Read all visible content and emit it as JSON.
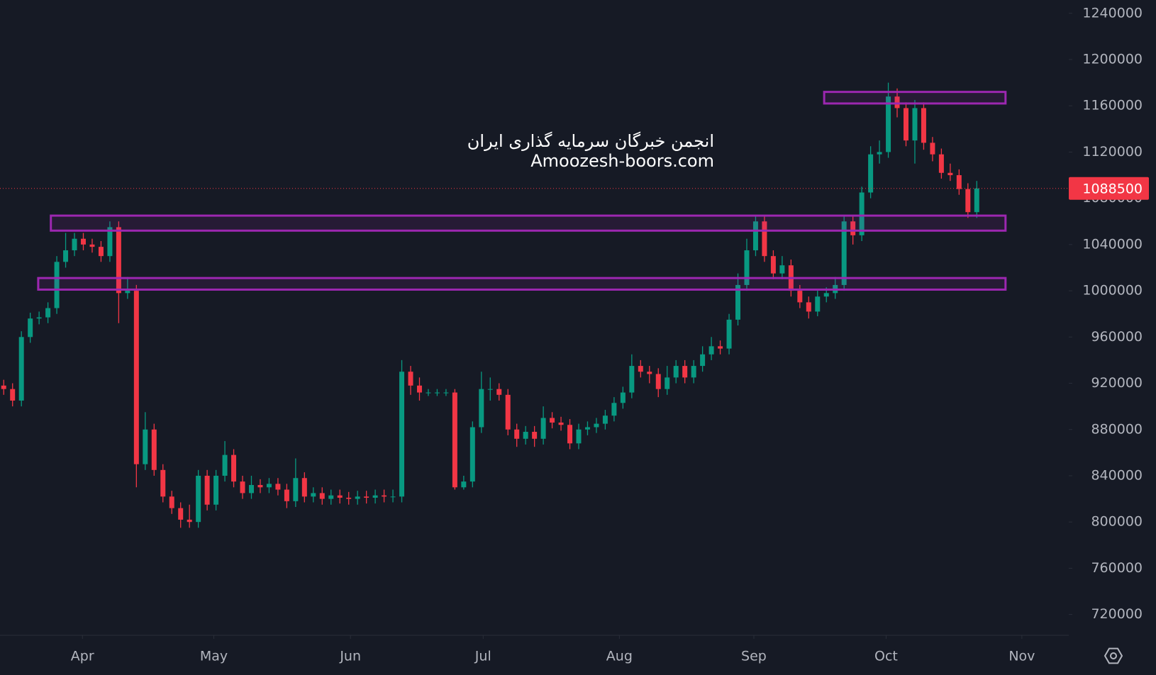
{
  "chart_data": {
    "type": "candlestick",
    "watermark": [
      "انجمن خبرگان سرمایه گذاری ایران",
      "Amoozesh-boors.com"
    ],
    "up_color": "#089981",
    "down_color": "#f23645",
    "zone_color": "#9c27b0",
    "ylim": [
      702000,
      1251500
    ],
    "yticks": [
      720000,
      760000,
      800000,
      840000,
      880000,
      920000,
      960000,
      1000000,
      1040000,
      1080000,
      1120000,
      1160000,
      1200000,
      1240000
    ],
    "xlim": [
      -0.42,
      120.4
    ],
    "xticks": [
      {
        "value": 8.9,
        "label": "Apr"
      },
      {
        "value": 23.75,
        "label": "May"
      },
      {
        "value": 39.2,
        "label": "Jun"
      },
      {
        "value": 54.2,
        "label": "Jul"
      },
      {
        "value": 69.6,
        "label": "Aug"
      },
      {
        "value": 84.8,
        "label": "Sep"
      },
      {
        "value": 99.75,
        "label": "Oct"
      },
      {
        "value": 115.1,
        "label": "Nov"
      }
    ],
    "grid": false,
    "zones": [
      {
        "top": 1172000,
        "bottom": 1162000,
        "start": 92.75,
        "end": 113.25
      },
      {
        "top": 1065000,
        "bottom": 1052000,
        "start": 5.33,
        "end": 113.25
      },
      {
        "top": 1011000,
        "bottom": 1001000,
        "start": 3.9,
        "end": 113.25
      }
    ],
    "series": {
      "open": [
        918000,
        915000,
        905000,
        960000,
        976000,
        977000,
        985000,
        1025000,
        1035000,
        1045000,
        1040000,
        1038000,
        1030000,
        1055000,
        998000,
        1000000,
        850000,
        880000,
        845000,
        822000,
        812000,
        802000,
        800000,
        840000,
        815000,
        840000,
        858000,
        835000,
        825000,
        832000,
        830000,
        833000,
        828000,
        818000,
        838000,
        822000,
        825000,
        820000,
        823000,
        821000,
        820000,
        822000,
        821000,
        823000,
        822000,
        822000,
        930000,
        918000,
        912000,
        912000,
        912000,
        912000,
        830000,
        835000,
        882000,
        915000,
        915000,
        910000,
        880000,
        872000,
        878000,
        872000,
        890000,
        886000,
        884000,
        868000,
        880000,
        882000,
        885000,
        892000,
        903000,
        912000,
        935000,
        930000,
        928000,
        915000,
        925000,
        935000,
        925000,
        935000,
        945000,
        952000,
        950000,
        975000,
        1005000,
        1035000,
        1060000,
        1030000,
        1015000,
        1022000,
        1000000,
        990000,
        982000,
        995000,
        998000,
        1005000,
        1060000,
        1048000,
        1085000,
        1118000,
        1120000,
        1168000,
        1158000,
        1130000,
        1158000,
        1128000,
        1118000,
        1102000,
        1100000,
        1088000,
        1068000
      ],
      "high": [
        923000,
        920000,
        965000,
        981000,
        982000,
        990000,
        1030000,
        1050000,
        1050000,
        1050000,
        1045000,
        1043000,
        1060000,
        1060000,
        1012000,
        1005000,
        895000,
        885000,
        850000,
        827000,
        817000,
        815000,
        845000,
        845000,
        845000,
        870000,
        863000,
        840000,
        840000,
        837000,
        838000,
        838000,
        833000,
        855000,
        843000,
        830000,
        830000,
        828000,
        828000,
        826000,
        827000,
        827000,
        828000,
        828000,
        828000,
        940000,
        935000,
        925000,
        915000,
        915000,
        915000,
        915000,
        840000,
        887000,
        930000,
        925000,
        920000,
        915000,
        885000,
        883000,
        883000,
        900000,
        895000,
        891000,
        889000,
        885000,
        887000,
        890000,
        897000,
        908000,
        917000,
        945000,
        940000,
        935000,
        933000,
        935000,
        940000,
        940000,
        940000,
        952000,
        960000,
        957000,
        980000,
        1015000,
        1045000,
        1065000,
        1065000,
        1035000,
        1030000,
        1027000,
        1005000,
        995000,
        1000000,
        1003000,
        1012000,
        1065000,
        1065000,
        1090000,
        1125000,
        1130000,
        1180000,
        1175000,
        1163000,
        1165000,
        1163000,
        1133000,
        1123000,
        1110000,
        1105000,
        1093000,
        1095000
      ],
      "low": [
        910000,
        900000,
        900000,
        955000,
        971000,
        972000,
        980000,
        1020000,
        1030000,
        1035000,
        1033000,
        1025000,
        1025000,
        972000,
        993000,
        830000,
        845000,
        840000,
        817000,
        807000,
        795000,
        795000,
        795000,
        810000,
        810000,
        835000,
        830000,
        820000,
        820000,
        825000,
        825000,
        823000,
        812000,
        813000,
        817000,
        817000,
        815000,
        815000,
        816000,
        815000,
        815000,
        816000,
        816000,
        817000,
        817000,
        817000,
        910000,
        905000,
        909000,
        909000,
        909000,
        828000,
        828000,
        830000,
        877000,
        905000,
        905000,
        875000,
        865000,
        867000,
        865000,
        867000,
        881000,
        879000,
        863000,
        863000,
        875000,
        877000,
        880000,
        887000,
        898000,
        907000,
        925000,
        920000,
        908000,
        910000,
        920000,
        920000,
        920000,
        930000,
        940000,
        945000,
        945000,
        970000,
        1000000,
        1030000,
        1025000,
        1010000,
        1010000,
        995000,
        985000,
        976000,
        978000,
        990000,
        993000,
        1000000,
        1040000,
        1043000,
        1080000,
        1110000,
        1115000,
        1150000,
        1125000,
        1110000,
        1122000,
        1112000,
        1097000,
        1095000,
        1083000,
        1063000,
        1063000
      ],
      "close": [
        915000,
        905000,
        960000,
        976000,
        977000,
        985000,
        1025000,
        1035000,
        1045000,
        1040000,
        1038000,
        1030000,
        1055000,
        998000,
        1000000,
        850000,
        880000,
        845000,
        822000,
        812000,
        802000,
        800000,
        840000,
        815000,
        840000,
        858000,
        835000,
        825000,
        832000,
        830000,
        833000,
        828000,
        818000,
        838000,
        822000,
        825000,
        820000,
        823000,
        821000,
        820000,
        822000,
        821000,
        823000,
        822000,
        822000,
        930000,
        918000,
        912000,
        912000,
        912000,
        912000,
        830000,
        835000,
        882000,
        915000,
        915000,
        910000,
        880000,
        872000,
        878000,
        872000,
        890000,
        886000,
        884000,
        868000,
        880000,
        882000,
        885000,
        892000,
        903000,
        912000,
        935000,
        930000,
        928000,
        915000,
        925000,
        935000,
        925000,
        935000,
        945000,
        952000,
        950000,
        975000,
        1005000,
        1035000,
        1060000,
        1030000,
        1015000,
        1022000,
        1000000,
        990000,
        982000,
        995000,
        998000,
        1005000,
        1060000,
        1048000,
        1085000,
        1118000,
        1120000,
        1168000,
        1158000,
        1130000,
        1158000,
        1128000,
        1118000,
        1102000,
        1100000,
        1088000,
        1068000,
        1088500
      ]
    }
  }
}
